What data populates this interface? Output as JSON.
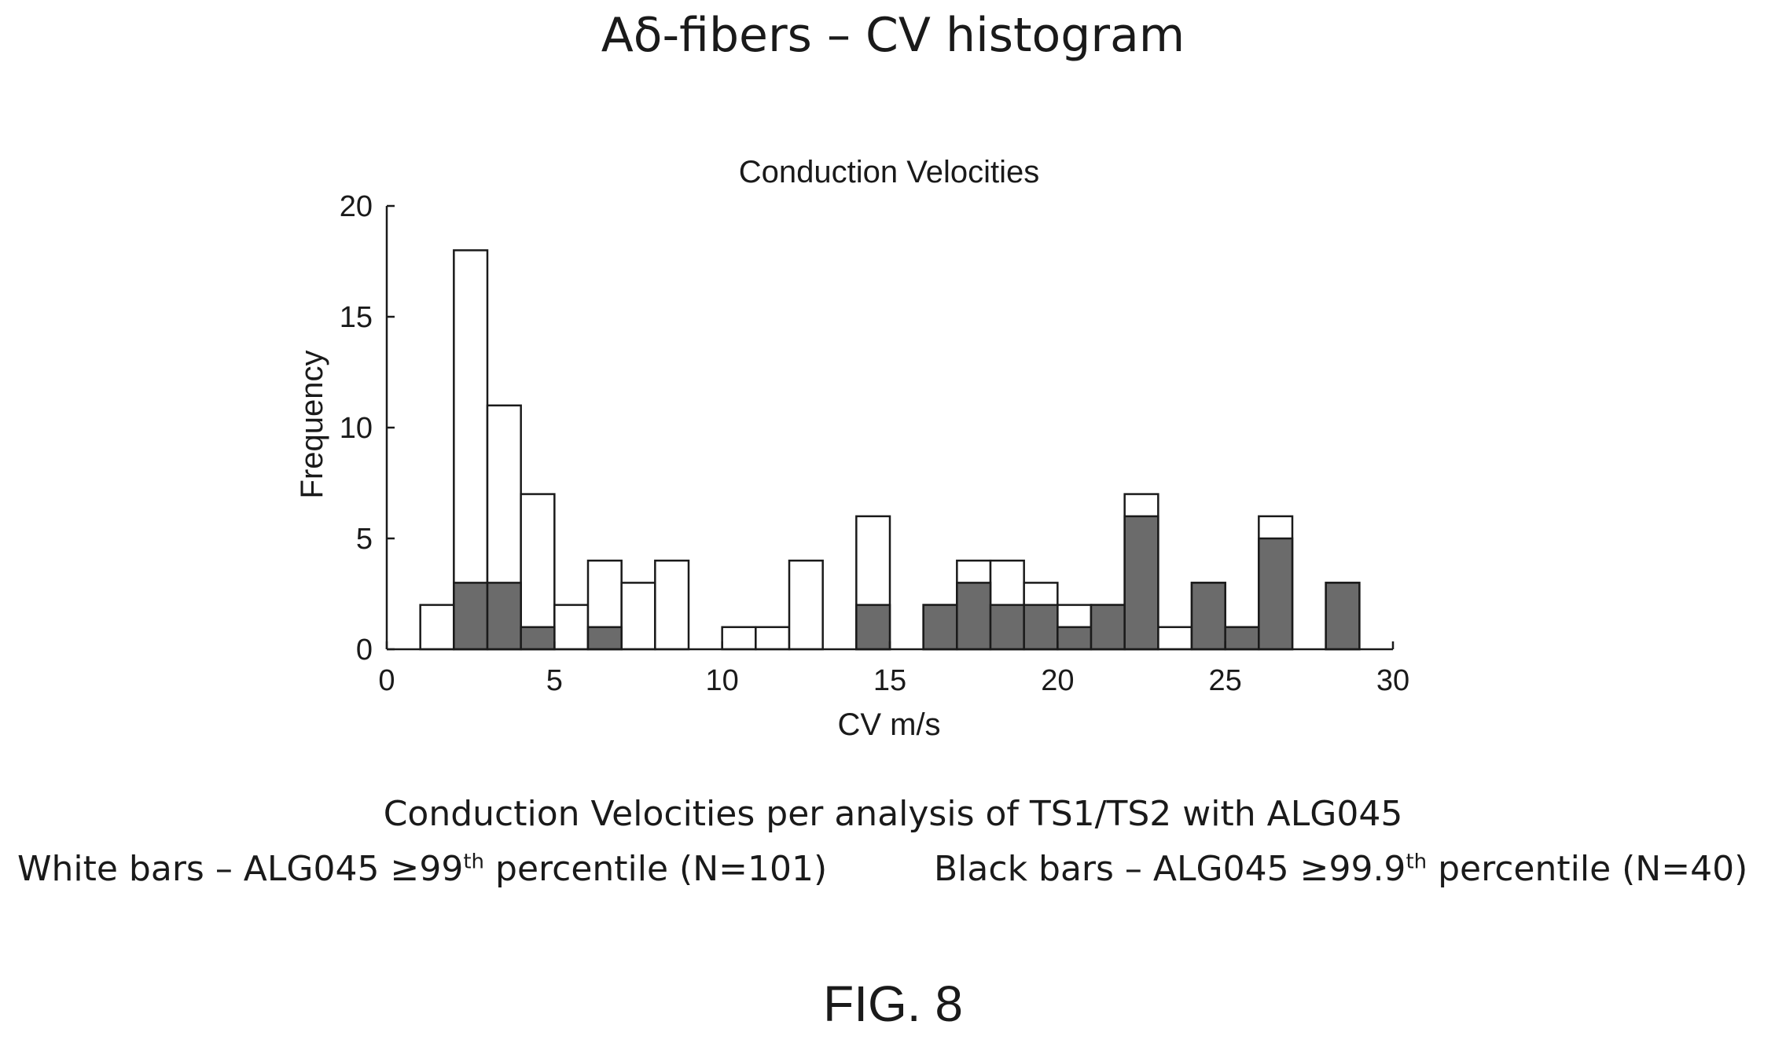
{
  "page_title": "Aδ-fibers – CV histogram",
  "caption_line": "Conduction Velocities per analysis of TS1/TS2 with ALG045",
  "legend": {
    "white_prefix": "White bars – ALG045 ≥99",
    "white_sup": "th",
    "white_suffix": " percentile (N=101)",
    "black_prefix": "Black bars – ALG045 ≥99.9",
    "black_sup": "th",
    "black_suffix": " percentile (N=40)"
  },
  "figure_label": "FIG. 8",
  "chart_data": {
    "type": "bar",
    "title": "Conduction Velocities",
    "xlabel": "CV m/s",
    "ylabel": "Frequency",
    "xlim": [
      0,
      30
    ],
    "ylim": [
      0,
      20
    ],
    "xticks": [
      "0",
      "5",
      "10",
      "15",
      "20",
      "25",
      "30"
    ],
    "yticks": [
      "0",
      "5",
      "10",
      "15",
      "20"
    ],
    "bin_width": 1,
    "bin_starts": [
      1,
      2,
      3,
      4,
      5,
      6,
      7,
      8,
      9,
      10,
      11,
      12,
      13,
      14,
      15,
      16,
      17,
      18,
      19,
      20,
      21,
      22,
      23,
      24,
      25,
      26,
      27,
      28
    ],
    "series": [
      {
        "name": "White bars – ALG045 ≥99th percentile (N=101)",
        "color": "#ffffff",
        "values": [
          2,
          18,
          11,
          7,
          2,
          4,
          3,
          4,
          0,
          1,
          1,
          4,
          0,
          6,
          0,
          2,
          4,
          4,
          3,
          2,
          2,
          7,
          1,
          3,
          1,
          6,
          0,
          3
        ]
      },
      {
        "name": "Black bars – ALG045 ≥99.9th percentile (N=40)",
        "color": "#6b6b6b",
        "values": [
          0,
          3,
          3,
          1,
          0,
          1,
          0,
          0,
          0,
          0,
          0,
          0,
          0,
          2,
          0,
          2,
          3,
          2,
          2,
          1,
          2,
          6,
          0,
          3,
          1,
          5,
          0,
          3
        ]
      }
    ],
    "legend_position": "below-chart"
  }
}
